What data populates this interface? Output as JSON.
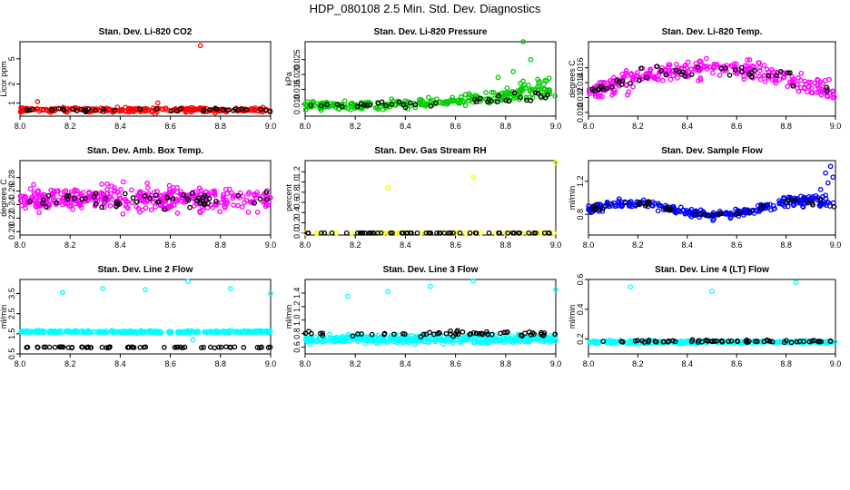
{
  "title": "HDP_080108  2.5 Min. Std. Dev. Diagnostics",
  "colors": {
    "reference": "#000000",
    "red": "#ff0000",
    "green": "#00cc00",
    "magenta": "#ff00ff",
    "yellow": "#ffff00",
    "blue": "#0000ff",
    "cyan": "#00ffff"
  },
  "chart_data": [
    {
      "type": "scatter",
      "title": "Stan. Dev. Li-820 CO2",
      "ylabel": "Licor ppm",
      "xlim": [
        8.0,
        9.0
      ],
      "ylim": [
        0.62,
        9.3
      ],
      "ylog": true,
      "xticks": [
        "8.0",
        "8.2",
        "8.4",
        "8.6",
        "8.8",
        "9.0"
      ],
      "yticks": [
        "1",
        "2",
        "5"
      ],
      "series": [
        {
          "name": "main",
          "color": "red",
          "base": 0.78,
          "spread": 0.12,
          "n": 260,
          "outliers": [
            [
              8.72,
              8.1
            ],
            [
              8.07,
              1.05
            ],
            [
              8.55,
              1.0
            ]
          ]
        },
        {
          "name": "reference",
          "color": "black",
          "base": 0.78,
          "spread": 0.1,
          "n": 40,
          "outliers": []
        }
      ]
    },
    {
      "type": "scatter",
      "title": "Stan. Dev. Li-820 Pressure",
      "ylabel": "kPa",
      "xlim": [
        8.0,
        9.0
      ],
      "ylim": [
        0.006,
        0.031
      ],
      "ylog": false,
      "xticks": [
        "8.0",
        "8.2",
        "8.4",
        "8.6",
        "8.8",
        "9.0"
      ],
      "yticks": [
        "0.010",
        "0.015",
        "0.020",
        "0.025"
      ],
      "series": [
        {
          "name": "main",
          "color": "green",
          "base": 0.0095,
          "spread": 0.0025,
          "n": 280,
          "rise": 0.007,
          "outliers": [
            [
              8.87,
              0.031
            ],
            [
              8.9,
              0.025
            ],
            [
              8.83,
              0.021
            ],
            [
              8.77,
              0.019
            ]
          ]
        },
        {
          "name": "reference",
          "color": "black",
          "base": 0.0095,
          "spread": 0.002,
          "n": 40,
          "rise": 0.005,
          "outliers": []
        }
      ]
    },
    {
      "type": "scatter",
      "title": "Stan. Dev. Li-820 Temp.",
      "ylabel": "degrees C",
      "xlim": [
        8.0,
        9.0
      ],
      "ylim": [
        0.0095,
        0.0195
      ],
      "ylog": false,
      "xticks": [
        "8.0",
        "8.2",
        "8.4",
        "8.6",
        "8.8",
        "9.0"
      ],
      "yticks": [
        "0.010",
        "0.012",
        "0.014",
        "0.016"
      ],
      "series": [
        {
          "name": "main",
          "color": "magenta",
          "base": 0.0142,
          "spread": 0.0022,
          "n": 300,
          "arch": 0.0035,
          "outliers": []
        },
        {
          "name": "reference",
          "color": "black",
          "base": 0.0142,
          "spread": 0.0018,
          "n": 45,
          "arch": 0.0035,
          "outliers": []
        }
      ]
    },
    {
      "type": "scatter",
      "title": "Stan. Dev. Amb. Box Temp.",
      "ylabel": "degrees C",
      "xlim": [
        8.0,
        9.0
      ],
      "ylim": [
        0.195,
        0.305
      ],
      "ylog": false,
      "xticks": [
        "8.0",
        "8.2",
        "8.4",
        "8.6",
        "8.8",
        "9.0"
      ],
      "yticks": [
        "0.20",
        "0.22",
        "0.24",
        "0.26",
        "0.28"
      ],
      "series": [
        {
          "name": "main",
          "color": "magenta",
          "base": 0.248,
          "spread": 0.03,
          "n": 380,
          "outliers": []
        },
        {
          "name": "reference",
          "color": "black",
          "base": 0.248,
          "spread": 0.026,
          "n": 55,
          "outliers": []
        }
      ]
    },
    {
      "type": "scatter",
      "title": "Stan. Dev. Gas Stream RH",
      "ylabel": "percent",
      "xlim": [
        8.0,
        9.0
      ],
      "ylim": [
        -0.04,
        1.42
      ],
      "ylog": false,
      "xticks": [
        "8.0",
        "8.2",
        "8.4",
        "8.6",
        "8.8",
        "9.0"
      ],
      "yticks": [
        "0.0",
        "0.2",
        "0.4",
        "0.6",
        "0.8",
        "1.0",
        "1.2"
      ],
      "series": [
        {
          "name": "main",
          "color": "yellow",
          "base": 0.0,
          "spread": 0.0,
          "n": 60,
          "outliers": [
            [
              8.33,
              0.88
            ],
            [
              8.67,
              1.1
            ],
            [
              9.0,
              1.38
            ]
          ]
        },
        {
          "name": "reference",
          "color": "black",
          "base": 0.0,
          "spread": 0.0,
          "n": 60,
          "outliers": []
        }
      ]
    },
    {
      "type": "scatter",
      "title": "Stan. Dev. Sample Flow",
      "ylabel": "ml/min",
      "xlim": [
        8.0,
        9.0
      ],
      "ylim": [
        0.55,
        1.45
      ],
      "ylog": false,
      "xticks": [
        "8.0",
        "8.2",
        "8.4",
        "8.6",
        "8.8",
        "9.0"
      ],
      "yticks": [
        "0.8",
        "1.2"
      ],
      "series": [
        {
          "name": "main",
          "color": "blue",
          "base": 0.86,
          "spread": 0.08,
          "n": 300,
          "wave": true,
          "outliers": [
            [
              8.98,
              1.38
            ],
            [
              8.96,
              1.3
            ],
            [
              8.99,
              1.25
            ],
            [
              8.94,
              1.1
            ],
            [
              8.97,
              1.18
            ]
          ]
        },
        {
          "name": "reference",
          "color": "black",
          "base": 0.86,
          "spread": 0.07,
          "n": 40,
          "wave": true,
          "outliers": []
        }
      ]
    },
    {
      "type": "scatter",
      "title": "Stan. Dev. Line 2 Flow",
      "ylabel": "ml/min",
      "xlim": [
        8.0,
        9.0
      ],
      "ylim": [
        0.5,
        4.2
      ],
      "ylog": false,
      "xticks": [
        "8.0",
        "8.2",
        "8.4",
        "8.6",
        "8.8",
        "9.0"
      ],
      "yticks": [
        "0.5",
        "1.5",
        "2.5",
        "3.5"
      ],
      "series": [
        {
          "name": "main",
          "color": "cyan",
          "base": 1.6,
          "spread": 0.1,
          "n": 330,
          "outliers": [
            [
              8.17,
              3.55
            ],
            [
              8.33,
              3.75
            ],
            [
              8.5,
              3.7
            ],
            [
              8.67,
              4.1
            ],
            [
              8.84,
              3.75
            ],
            [
              9.0,
              3.5
            ],
            [
              8.69,
              1.2
            ]
          ]
        },
        {
          "name": "reference",
          "color": "black",
          "base": 0.83,
          "spread": 0.05,
          "n": 60,
          "outliers": []
        }
      ]
    },
    {
      "type": "scatter",
      "title": "Stan. Dev. Line 3 Flow",
      "ylabel": "ml/min",
      "xlim": [
        8.0,
        9.0
      ],
      "ylim": [
        0.5,
        1.6
      ],
      "ylog": false,
      "xticks": [
        "8.0",
        "8.2",
        "8.4",
        "8.6",
        "8.8",
        "9.0"
      ],
      "yticks": [
        "0.6",
        "0.8",
        "1.0",
        "1.2",
        "1.4"
      ],
      "series": [
        {
          "name": "main",
          "color": "cyan",
          "base": 0.72,
          "spread": 0.1,
          "n": 420,
          "outliers": [
            [
              8.17,
              1.35
            ],
            [
              8.33,
              1.42
            ],
            [
              8.5,
              1.5
            ],
            [
              8.67,
              1.58
            ],
            [
              9.0,
              1.45
            ]
          ]
        },
        {
          "name": "reference",
          "color": "black",
          "base": 0.8,
          "spread": 0.07,
          "n": 60,
          "outliers": []
        }
      ]
    },
    {
      "type": "scatter",
      "title": "Stan. Dev. Line 4 (LT) Flow",
      "ylabel": "ml/min",
      "xlim": [
        8.0,
        9.0
      ],
      "ylim": [
        0.1,
        0.6
      ],
      "ylog": false,
      "xticks": [
        "8.0",
        "8.2",
        "8.4",
        "8.6",
        "8.8",
        "9.0"
      ],
      "yticks": [
        "0.2",
        "0.4",
        "0.6"
      ],
      "series": [
        {
          "name": "main",
          "color": "cyan",
          "base": 0.18,
          "spread": 0.018,
          "n": 320,
          "outliers": [
            [
              8.17,
              0.55
            ],
            [
              8.5,
              0.52
            ],
            [
              8.84,
              0.58
            ]
          ]
        },
        {
          "name": "reference",
          "color": "black",
          "base": 0.185,
          "spread": 0.015,
          "n": 60,
          "outliers": []
        }
      ]
    }
  ]
}
